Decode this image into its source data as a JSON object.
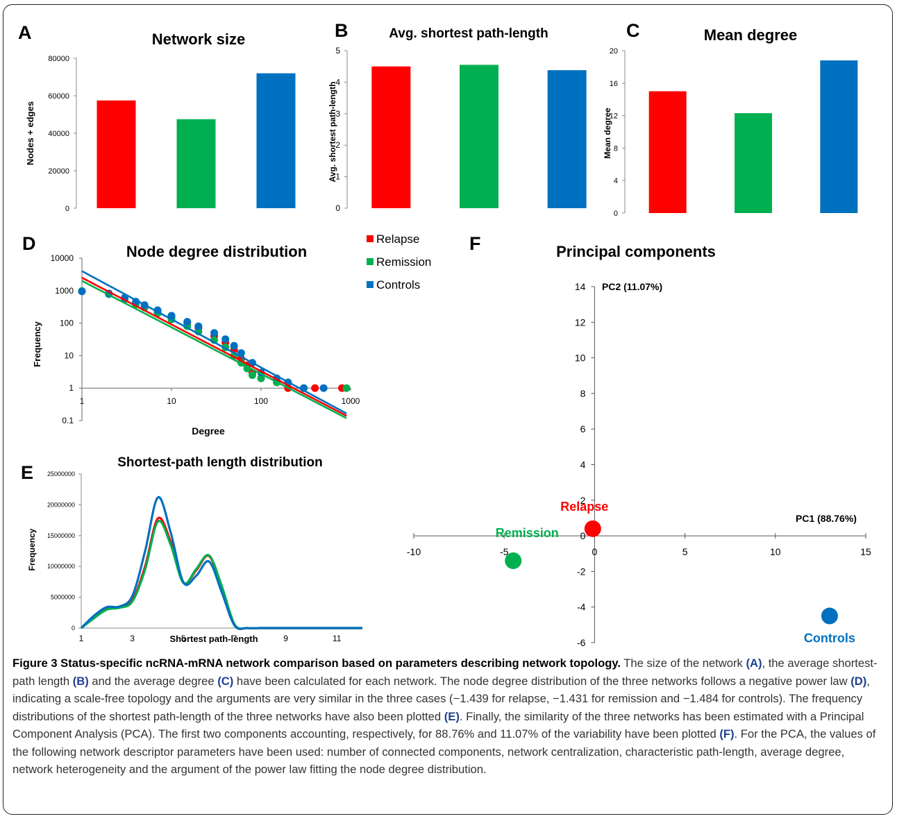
{
  "colors": {
    "relapse": "#ff0000",
    "remission": "#00b050",
    "controls": "#0070c0",
    "caption_ref": "#1f3f8f"
  },
  "panel_letters": {
    "a": "A",
    "b": "B",
    "c": "C",
    "d": "D",
    "e": "E",
    "f": "F"
  },
  "legend": {
    "items": [
      {
        "label": "Relapse",
        "color": "#ff0000"
      },
      {
        "label": "Remission",
        "color": "#00b050"
      },
      {
        "label": "Controls",
        "color": "#0070c0"
      }
    ]
  },
  "chart_data": [
    {
      "id": "A",
      "type": "bar",
      "title": "Network size",
      "xlabel": "",
      "ylabel": "Nodes + edges",
      "categories": [
        "Relapse",
        "Remission",
        "Controls"
      ],
      "values": [
        57500,
        47500,
        72000
      ],
      "ylim": [
        0,
        80000
      ],
      "yticks": [
        "0",
        "20000",
        "40000",
        "60000",
        "80000"
      ],
      "grid": false
    },
    {
      "id": "B",
      "type": "bar",
      "title": "Avg. shortest path-length",
      "xlabel": "",
      "ylabel": "Avg. shortest path-length",
      "categories": [
        "Relapse",
        "Remission",
        "Controls"
      ],
      "values": [
        4.5,
        4.55,
        4.38
      ],
      "ylim": [
        0,
        5
      ],
      "yticks": [
        "0",
        "1",
        "2",
        "3",
        "4",
        "5"
      ],
      "grid": false
    },
    {
      "id": "C",
      "type": "bar",
      "title": "Mean degree",
      "xlabel": "",
      "ylabel": "Mean degree",
      "categories": [
        "Relapse",
        "Remission",
        "Controls"
      ],
      "values": [
        15.0,
        12.3,
        18.8
      ],
      "ylim": [
        0,
        20
      ],
      "yticks": [
        "0",
        "4",
        "8",
        "12",
        "16",
        "20"
      ],
      "grid": false
    },
    {
      "id": "D",
      "type": "scatter",
      "title": "Node degree distribution",
      "xlabel": "Degree",
      "ylabel": "Frequency",
      "log_x": true,
      "log_y": true,
      "xlim": [
        1,
        1000
      ],
      "ylim": [
        0.1,
        10000
      ],
      "xticks": [
        "1",
        "10",
        "100",
        "1000"
      ],
      "yticks": [
        "0.1",
        "1",
        "10",
        "100",
        "1000",
        "10000"
      ],
      "series": [
        {
          "name": "Relapse",
          "fit_exponent": -1.439,
          "fit_intercept": 2500,
          "points": [
            [
              1,
              960
            ],
            [
              2,
              800
            ],
            [
              3,
              560
            ],
            [
              4,
              420
            ],
            [
              5,
              330
            ],
            [
              7,
              220
            ],
            [
              10,
              150
            ],
            [
              15,
              100
            ],
            [
              20,
              70
            ],
            [
              30,
              40
            ],
            [
              40,
              25
            ],
            [
              50,
              15
            ],
            [
              60,
              8
            ],
            [
              70,
              5
            ],
            [
              80,
              3
            ],
            [
              100,
              2
            ],
            [
              150,
              1.5
            ],
            [
              200,
              1
            ],
            [
              400,
              1
            ],
            [
              800,
              1
            ]
          ]
        },
        {
          "name": "Remission",
          "fit_exponent": -1.431,
          "fit_intercept": 2000,
          "points": [
            [
              1,
              970
            ],
            [
              2,
              780
            ],
            [
              3,
              540
            ],
            [
              4,
              380
            ],
            [
              5,
              300
            ],
            [
              7,
              200
            ],
            [
              10,
              130
            ],
            [
              15,
              80
            ],
            [
              20,
              55
            ],
            [
              30,
              30
            ],
            [
              40,
              18
            ],
            [
              50,
              10
            ],
            [
              60,
              6
            ],
            [
              70,
              4
            ],
            [
              80,
              2.5
            ],
            [
              100,
              2
            ],
            [
              150,
              1.5
            ],
            [
              300,
              1
            ],
            [
              900,
              1
            ]
          ]
        },
        {
          "name": "Controls",
          "fit_exponent": -1.484,
          "fit_intercept": 4000,
          "points": [
            [
              1,
              950
            ],
            [
              2,
              820
            ],
            [
              3,
              600
            ],
            [
              4,
              460
            ],
            [
              5,
              360
            ],
            [
              7,
              250
            ],
            [
              10,
              170
            ],
            [
              15,
              110
            ],
            [
              20,
              80
            ],
            [
              30,
              50
            ],
            [
              40,
              32
            ],
            [
              50,
              20
            ],
            [
              60,
              12
            ],
            [
              80,
              6
            ],
            [
              100,
              3
            ],
            [
              150,
              2
            ],
            [
              200,
              1.5
            ],
            [
              300,
              1
            ],
            [
              500,
              1
            ]
          ]
        }
      ]
    },
    {
      "id": "E",
      "type": "line",
      "title": "Shortest-path length distribution",
      "xlabel": "Shortest path-length",
      "ylabel": "Frequency",
      "xlim": [
        1,
        12
      ],
      "ylim": [
        0,
        25000000
      ],
      "xticks": [
        "1",
        "3",
        "5",
        "7",
        "9",
        "11"
      ],
      "yticks": [
        "0",
        "5000000",
        "10000000",
        "15000000",
        "20000000",
        "25000000"
      ],
      "x": [
        1,
        1.5,
        2,
        2.5,
        3,
        3.5,
        4,
        4.5,
        5,
        5.5,
        6,
        6.5,
        7,
        7.5,
        8,
        9,
        10,
        11,
        12
      ],
      "series": [
        {
          "name": "Relapse",
          "values": [
            0,
            1800000,
            3200000,
            3400000,
            4500000,
            10000000,
            17800000,
            14000000,
            7400000,
            9400000,
            11700000,
            6500000,
            500000,
            0,
            0,
            0,
            0,
            0,
            0
          ]
        },
        {
          "name": "Remission",
          "values": [
            0,
            1600000,
            3000000,
            3300000,
            4300000,
            9500000,
            17300000,
            13500000,
            7300000,
            9600000,
            11800000,
            6800000,
            600000,
            0,
            0,
            0,
            0,
            0,
            0
          ]
        },
        {
          "name": "Controls",
          "values": [
            0,
            2000000,
            3400000,
            3500000,
            5200000,
            12500000,
            21200000,
            15500000,
            7400000,
            8500000,
            10800000,
            5800000,
            400000,
            0,
            0,
            0,
            0,
            0,
            0
          ]
        }
      ]
    },
    {
      "id": "F",
      "type": "scatter",
      "title": "Principal components",
      "xlabel": "PC1 (88.76%)",
      "ylabel": "PC2 (11.07%)",
      "xlim": [
        -10,
        15
      ],
      "ylim": [
        -6,
        14
      ],
      "xticks": [
        "-10",
        "-5",
        "0",
        "5",
        "10",
        "15"
      ],
      "yticks": [
        "-6",
        "-4",
        "-2",
        "0",
        "2",
        "4",
        "6",
        "8",
        "10",
        "12",
        "14"
      ],
      "points": [
        {
          "label": "Relapse",
          "x": -0.1,
          "y": 0.4
        },
        {
          "label": "Remission",
          "x": -4.5,
          "y": -1.4
        },
        {
          "label": "Controls",
          "x": 13.0,
          "y": -4.5
        }
      ]
    }
  ],
  "caption": {
    "heading": "Figure 3 Status-specific ncRNA-mRNA network comparison based on parameters describing network topology.",
    "t1": " The size of the network ",
    "r1": "(A)",
    "t2": ", the average shortest-path length ",
    "r2": "(B)",
    "t3": " and the average degree ",
    "r3": "(C)",
    "t4": " have been calculated for each network. The node degree distribution of the three networks follows a negative power law ",
    "r4": "(D)",
    "t5": ", indicating a scale-free topology and the arguments are very similar in the three cases (−1.439 for relapse, −1.431 for remission and −1.484 for controls). The frequency distributions of the shortest path-length of the three networks have also been plotted ",
    "r5": "(E)",
    "t6": ". Finally, the similarity of the three networks has been estimated with a Principal Component Analysis (PCA). The first two components accounting, respectively, for 88.76% and 11.07% of the variability have been plotted ",
    "r6": "(F)",
    "t7": ". For the PCA, the values of the following network descriptor parameters have been used: number of connected components, network centralization, characteristic path-length, average degree, network heterogeneity and the argument of the power law fitting the node degree distribution."
  }
}
